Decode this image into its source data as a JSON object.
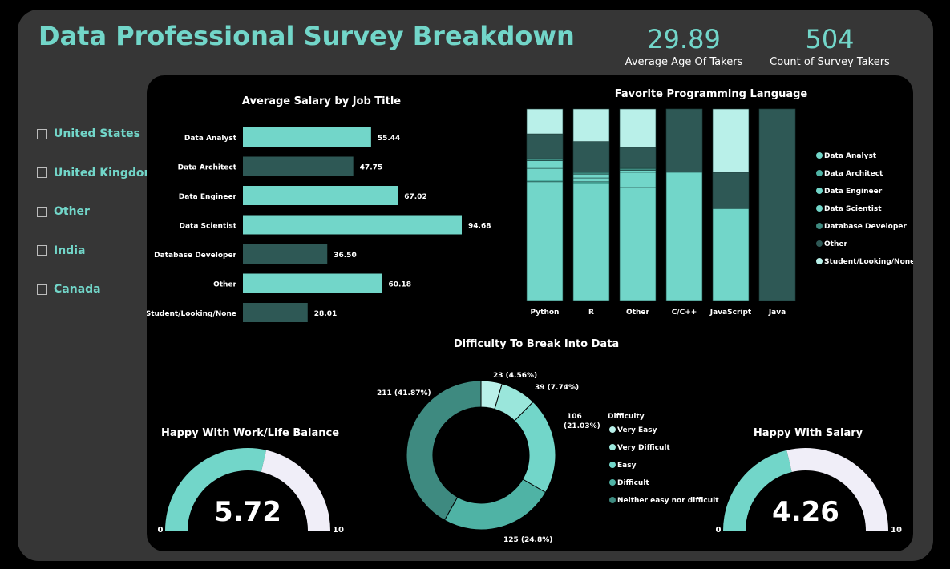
{
  "header": {
    "title": "Data Professional Survey Breakdown"
  },
  "kpis": {
    "average_age": {
      "value": "29.89",
      "label": "Average Age Of Takers"
    },
    "count": {
      "value": "504",
      "label": "Count of Survey Takers"
    }
  },
  "slicer": {
    "items": [
      "United States",
      "United Kingdom",
      "Other",
      "India",
      "Canada"
    ]
  },
  "colors": {
    "light": "#72d6c9",
    "dark": "#2e5855",
    "mid": "#4fb3a5",
    "pale": "#b9f0e9",
    "teal2": "#9ae6db",
    "track": "#f0eef8"
  },
  "chart_data": [
    {
      "type": "bar",
      "orientation": "horizontal",
      "title": "Average Salary by Job Title",
      "categories": [
        "Data Analyst",
        "Data Architect",
        "Data Engineer",
        "Data Scientist",
        "Database Developer",
        "Other",
        "Student/Looking/None"
      ],
      "values": [
        55.44,
        47.75,
        67.02,
        94.68,
        36.5,
        60.18,
        28.01
      ],
      "labels": [
        "55.44",
        "47.75",
        "67.02",
        "94.68",
        "36.50",
        "60.18",
        "28.01"
      ],
      "xlim": [
        0,
        100
      ]
    },
    {
      "type": "bar",
      "stacked": "100%",
      "title": "Favorite Programming Language",
      "categories": [
        "Python",
        "R",
        "Other",
        "C/C++",
        "JavaScript",
        "Java"
      ],
      "series": [
        {
          "name": "Data Analyst",
          "values": [
            62,
            61,
            59,
            0,
            0,
            0
          ]
        },
        {
          "name": "Data Architect",
          "values": [
            1,
            1,
            0,
            0,
            0,
            0
          ]
        },
        {
          "name": "Data Engineer",
          "values": [
            6,
            2,
            8,
            67,
            48,
            0
          ]
        },
        {
          "name": "Data Scientist",
          "values": [
            4,
            2,
            1,
            0,
            0,
            0
          ]
        },
        {
          "name": "Database Developer",
          "values": [
            1,
            1,
            1,
            0,
            0,
            0
          ]
        },
        {
          "name": "Other",
          "values": [
            13,
            16,
            11,
            33,
            19,
            100
          ]
        },
        {
          "name": "Student/Looking/None",
          "values": [
            13,
            17,
            20,
            0,
            33,
            0
          ]
        }
      ],
      "legend": "right"
    },
    {
      "type": "pie",
      "donut": true,
      "title": "Difficulty To Break Into Data",
      "legend_title": "Difficulty",
      "categories": [
        "Very Easy",
        "Very Difficult",
        "Easy",
        "Difficult",
        "Neither easy nor difficult"
      ],
      "values": [
        23,
        39,
        106,
        125,
        211
      ],
      "labels": [
        "23 (4.56%)",
        "39 (7.74%)",
        "106 (21.03%)",
        "125 (24.8%)",
        "211 (41.87%)"
      ]
    },
    {
      "type": "gauge",
      "title": "Happy With Work/Life Balance",
      "value": 5.72,
      "value_label": "5.72",
      "min": 0,
      "max": 10,
      "min_label": "0",
      "max_label": "10"
    },
    {
      "type": "gauge",
      "title": "Happy With Salary",
      "value": 4.26,
      "value_label": "4.26",
      "min": 0,
      "max": 10,
      "min_label": "0",
      "max_label": "10"
    }
  ]
}
